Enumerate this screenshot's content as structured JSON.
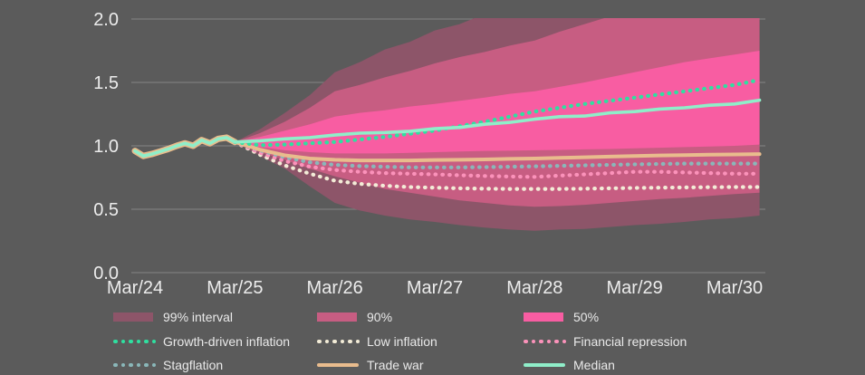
{
  "chart_data": {
    "type": "area",
    "title": "",
    "xlabel": "",
    "ylabel": "",
    "x_tick_labels": [
      "Mar/24",
      "Mar/25",
      "Mar/26",
      "Mar/27",
      "Mar/28",
      "Mar/29",
      "Mar/30"
    ],
    "x_tick_positions_years": [
      0,
      1,
      2,
      3,
      4,
      5,
      6
    ],
    "y_tick_labels": [
      "0.0",
      "0.5",
      "1.0",
      "1.5",
      "2.0"
    ],
    "y_tick_values": [
      0.0,
      0.5,
      1.0,
      1.5,
      2.0
    ],
    "ylim": [
      0.0,
      2.0
    ],
    "x_range_years": [
      0,
      6.25
    ],
    "grid": "horizontal-only",
    "legend_position": "bottom",
    "history": {
      "t": [
        0,
        0.083,
        0.167,
        0.25,
        0.333,
        0.417,
        0.5,
        0.583,
        0.667,
        0.75,
        0.833,
        0.917,
        1.0
      ],
      "v": [
        0.96,
        0.92,
        0.935,
        0.955,
        0.975,
        1.0,
        1.02,
        1.0,
        1.045,
        1.02,
        1.055,
        1.065,
        1.03
      ]
    },
    "forecast_t": [
      1,
      1.25,
      1.5,
      1.75,
      2,
      2.25,
      2.5,
      2.75,
      3,
      3.25,
      3.5,
      3.75,
      4,
      4.25,
      4.5,
      4.75,
      5,
      5.25,
      5.5,
      5.75,
      6,
      6.25
    ],
    "bands": [
      {
        "name": "99% interval",
        "color": "#8d5569",
        "top": [
          1.03,
          1.13,
          1.26,
          1.4,
          1.58,
          1.66,
          1.76,
          1.82,
          1.91,
          1.96,
          2.04,
          2.12,
          2.15,
          2.15,
          2.15,
          2.15,
          2.15,
          2.15,
          2.15,
          2.15,
          2.15,
          2.15
        ],
        "bottom": [
          1.03,
          0.92,
          0.82,
          0.68,
          0.55,
          0.49,
          0.45,
          0.42,
          0.4,
          0.375,
          0.355,
          0.34,
          0.33,
          0.34,
          0.345,
          0.36,
          0.375,
          0.385,
          0.4,
          0.42,
          0.43,
          0.45
        ]
      },
      {
        "name": "90%",
        "color": "#c75d82",
        "top": [
          1.03,
          1.1,
          1.19,
          1.3,
          1.43,
          1.48,
          1.54,
          1.59,
          1.65,
          1.7,
          1.74,
          1.79,
          1.83,
          1.9,
          1.96,
          2.02,
          2.08,
          2.12,
          2.12,
          2.12,
          2.12,
          2.12
        ],
        "bottom": [
          1.03,
          0.95,
          0.89,
          0.82,
          0.76,
          0.71,
          0.66,
          0.63,
          0.6,
          0.57,
          0.55,
          0.53,
          0.52,
          0.525,
          0.535,
          0.55,
          0.565,
          0.58,
          0.59,
          0.605,
          0.62,
          0.63
        ]
      },
      {
        "name": "50%",
        "color": "#f85da2",
        "top": [
          1.03,
          1.07,
          1.12,
          1.17,
          1.23,
          1.26,
          1.28,
          1.31,
          1.33,
          1.355,
          1.38,
          1.41,
          1.43,
          1.465,
          1.5,
          1.54,
          1.58,
          1.62,
          1.66,
          1.69,
          1.72,
          1.75
        ],
        "bottom": [
          1.03,
          0.99,
          0.965,
          0.95,
          0.94,
          0.94,
          0.94,
          0.945,
          0.95,
          0.955,
          0.96,
          0.962,
          0.965,
          0.968,
          0.972,
          0.975,
          0.98,
          0.985,
          0.99,
          0.995,
          1.0,
          1.01
        ]
      }
    ],
    "series": [
      {
        "name": "Low inflation",
        "style": "dotted",
        "color": "#f3ecd7",
        "with_history": false,
        "values": [
          1.03,
          0.93,
          0.845,
          0.78,
          0.725,
          0.7,
          0.685,
          0.675,
          0.67,
          0.665,
          0.662,
          0.66,
          0.66,
          0.66,
          0.662,
          0.665,
          0.668,
          0.67,
          0.672,
          0.674,
          0.675,
          0.675
        ]
      },
      {
        "name": "Financial repression",
        "style": "dotted",
        "color": "#fb92ba",
        "with_history": false,
        "values": [
          1.03,
          0.945,
          0.88,
          0.835,
          0.81,
          0.795,
          0.785,
          0.78,
          0.775,
          0.768,
          0.762,
          0.758,
          0.755,
          0.765,
          0.775,
          0.785,
          0.795,
          0.795,
          0.79,
          0.785,
          0.78,
          0.78
        ]
      },
      {
        "name": "Stagflation",
        "style": "dotted",
        "color": "#8ab7b9",
        "with_history": false,
        "values": [
          1.03,
          0.965,
          0.91,
          0.87,
          0.85,
          0.84,
          0.835,
          0.83,
          0.83,
          0.83,
          0.832,
          0.835,
          0.838,
          0.842,
          0.846,
          0.85,
          0.854,
          0.857,
          0.86,
          0.86,
          0.86,
          0.86
        ]
      },
      {
        "name": "Trade war",
        "style": "solid",
        "color": "#e9bc8d",
        "with_history": true,
        "values": [
          1.03,
          0.97,
          0.925,
          0.9,
          0.89,
          0.885,
          0.885,
          0.885,
          0.888,
          0.89,
          0.893,
          0.897,
          0.9,
          0.905,
          0.91,
          0.915,
          0.92,
          0.924,
          0.927,
          0.93,
          0.932,
          0.935
        ]
      },
      {
        "name": "Growth-driven inflation",
        "style": "dotted",
        "color": "#2fe0a0",
        "with_history": false,
        "values": [
          1.03,
          1.005,
          1.01,
          1.02,
          1.03,
          1.05,
          1.07,
          1.095,
          1.12,
          1.155,
          1.19,
          1.23,
          1.27,
          1.3,
          1.33,
          1.355,
          1.38,
          1.405,
          1.43,
          1.455,
          1.48,
          1.52
        ]
      },
      {
        "name": "Median",
        "style": "solid",
        "color": "#8feec9",
        "with_history": true,
        "values": [
          1.03,
          1.04,
          1.055,
          1.065,
          1.085,
          1.1,
          1.105,
          1.115,
          1.135,
          1.145,
          1.17,
          1.185,
          1.21,
          1.23,
          1.235,
          1.26,
          1.27,
          1.29,
          1.3,
          1.32,
          1.33,
          1.36
        ]
      }
    ],
    "colors": {
      "background": "#5b5b5b",
      "gridline": "#7e7e7e",
      "tick_text": "#ececec",
      "band_99": "#8d5569",
      "band_90": "#c75d82",
      "band_50": "#f85da2",
      "median": "#8feec9",
      "growth_driven_inflation": "#2fe0a0",
      "stagflation": "#8ab7b9",
      "trade_war": "#e9bc8d",
      "financial_repression": "#fb92ba",
      "low_inflation": "#f3ecd7"
    }
  },
  "legend": {
    "rows": [
      [
        {
          "label": "99% interval",
          "swatch": "band",
          "color": "#8d5569"
        },
        {
          "label": "90%",
          "swatch": "band",
          "color": "#c75d82"
        },
        {
          "label": "50%",
          "swatch": "band",
          "color": "#f85da2"
        }
      ],
      [
        {
          "label": "Growth-driven inflation",
          "swatch": "dotted",
          "color": "#2fe0a0"
        },
        {
          "label": "Low inflation",
          "swatch": "dotted",
          "color": "#f3ecd7"
        },
        {
          "label": "Financial repression",
          "swatch": "dotted",
          "color": "#fb92ba"
        }
      ],
      [
        {
          "label": "Stagflation",
          "swatch": "dotted",
          "color": "#8ab7b9"
        },
        {
          "label": "Trade war",
          "swatch": "solid",
          "color": "#e9bc8d"
        },
        {
          "label": "Median",
          "swatch": "solid",
          "color": "#8feec9"
        }
      ]
    ]
  }
}
